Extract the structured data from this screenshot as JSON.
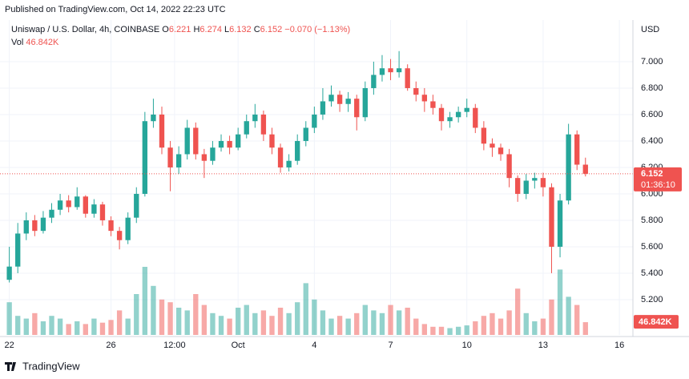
{
  "chart_data": {
    "type": "candlestick",
    "published": "Published on TradingView.com, Oct 14, 2022 22:23 UTC",
    "symbol": "Uniswap / U.S. Dollar, 4h, COINBASE",
    "ohlc_labels": {
      "open": "O",
      "high": "H",
      "low": "L",
      "close": "C"
    },
    "change": "−0.070 (−1.13%)",
    "volume_title": "Vol",
    "volume_label": "46.842K",
    "currency": "USD",
    "countdown": "01:36:10",
    "logo": "TradingView",
    "up_color": "#26a69a",
    "down_color": "#ef5350",
    "grid": true,
    "ylim": [
      4.933,
      7.315
    ],
    "yticks": [
      {
        "value": 5.2,
        "label": "5.200"
      },
      {
        "value": 5.4,
        "label": "5.400"
      },
      {
        "value": 5.6,
        "label": "5.600"
      },
      {
        "value": 5.8,
        "label": "5.800"
      },
      {
        "value": 6.0,
        "label": "6.000"
      },
      {
        "value": 6.2,
        "label": "6.200"
      },
      {
        "value": 6.4,
        "label": "6.400"
      },
      {
        "value": 6.6,
        "label": "6.600"
      },
      {
        "value": 6.8,
        "label": "6.800"
      },
      {
        "value": 7.0,
        "label": "7.000"
      }
    ],
    "xlim": [
      -1.1,
      73.6
    ],
    "xticks": [
      {
        "value": 0,
        "label": "22"
      },
      {
        "value": 12,
        "label": "26"
      },
      {
        "value": 19.5,
        "label": "12:00"
      },
      {
        "value": 27,
        "label": "Oct"
      },
      {
        "value": 36,
        "label": "4"
      },
      {
        "value": 45,
        "label": "7"
      },
      {
        "value": 54,
        "label": "10"
      },
      {
        "value": 63,
        "label": "13"
      },
      {
        "value": 72,
        "label": "16"
      }
    ],
    "vlim": [
      0,
      250000
    ],
    "open": [
      5.35,
      5.45,
      5.7,
      5.8,
      5.72,
      5.82,
      5.88,
      5.95,
      5.9,
      5.98,
      5.85,
      5.92,
      5.8,
      5.72,
      5.65,
      5.82,
      6.0,
      6.55,
      6.6,
      6.35,
      6.2,
      6.3,
      6.5,
      6.3,
      6.25,
      6.35,
      6.4,
      6.35,
      6.45,
      6.55,
      6.6,
      6.45,
      6.35,
      6.2,
      6.25,
      6.4,
      6.5,
      6.6,
      6.7,
      6.75,
      6.68,
      6.72,
      6.58,
      6.8,
      6.9,
      6.95,
      6.92,
      6.95,
      6.8,
      6.75,
      6.7,
      6.65,
      6.55,
      6.58,
      6.62,
      6.65,
      6.5,
      6.38,
      6.35,
      6.3,
      6.12,
      6.0,
      6.1,
      6.12,
      6.05,
      5.6,
      5.95,
      6.45,
      6.221
    ],
    "high": [
      5.6,
      5.78,
      5.86,
      5.84,
      5.87,
      5.93,
      6.0,
      5.99,
      6.05,
      5.99,
      5.96,
      5.94,
      5.83,
      5.75,
      5.86,
      6.05,
      6.62,
      6.72,
      6.66,
      6.4,
      6.36,
      6.56,
      6.54,
      6.34,
      6.4,
      6.45,
      6.44,
      6.5,
      6.6,
      6.68,
      6.63,
      6.5,
      6.38,
      6.3,
      6.45,
      6.55,
      6.66,
      6.8,
      6.82,
      6.78,
      6.77,
      6.75,
      6.85,
      7.0,
      7.05,
      7.02,
      7.08,
      6.98,
      6.85,
      6.8,
      6.75,
      6.68,
      6.62,
      6.66,
      6.72,
      6.68,
      6.55,
      6.42,
      6.38,
      6.34,
      6.14,
      6.15,
      6.16,
      6.16,
      6.08,
      6.0,
      6.53,
      6.48,
      6.274
    ],
    "low": [
      5.33,
      5.4,
      5.65,
      5.68,
      5.7,
      5.78,
      5.84,
      5.86,
      5.88,
      5.82,
      5.82,
      5.76,
      5.68,
      5.58,
      5.62,
      5.78,
      5.98,
      6.5,
      6.3,
      6.02,
      6.15,
      6.26,
      6.26,
      6.12,
      6.22,
      6.32,
      6.3,
      6.33,
      6.42,
      6.5,
      6.4,
      6.3,
      6.16,
      6.17,
      6.22,
      6.36,
      6.46,
      6.56,
      6.66,
      6.62,
      6.62,
      6.48,
      6.55,
      6.75,
      6.85,
      6.86,
      6.88,
      6.78,
      6.7,
      6.62,
      6.6,
      6.48,
      6.5,
      6.54,
      6.58,
      6.46,
      6.33,
      6.28,
      6.25,
      6.05,
      5.94,
      5.96,
      6.04,
      5.98,
      5.4,
      5.52,
      5.92,
      6.18,
      6.132
    ],
    "close": [
      5.45,
      5.7,
      5.8,
      5.72,
      5.82,
      5.88,
      5.95,
      5.9,
      5.98,
      5.85,
      5.92,
      5.8,
      5.72,
      5.65,
      5.82,
      6.0,
      6.55,
      6.6,
      6.35,
      6.2,
      6.3,
      6.5,
      6.3,
      6.25,
      6.35,
      6.4,
      6.35,
      6.45,
      6.55,
      6.6,
      6.45,
      6.35,
      6.2,
      6.25,
      6.4,
      6.5,
      6.6,
      6.7,
      6.75,
      6.68,
      6.72,
      6.58,
      6.8,
      6.9,
      6.95,
      6.92,
      6.95,
      6.8,
      6.75,
      6.7,
      6.65,
      6.55,
      6.58,
      6.62,
      6.65,
      6.5,
      6.38,
      6.35,
      6.3,
      6.12,
      6.0,
      6.1,
      6.12,
      6.05,
      5.6,
      5.95,
      6.45,
      6.221,
      6.152
    ],
    "volume": [
      120000,
      70000,
      60000,
      80000,
      50000,
      70000,
      60000,
      40000,
      50000,
      40000,
      60000,
      45000,
      55000,
      90000,
      60000,
      150000,
      250000,
      180000,
      130000,
      120000,
      100000,
      90000,
      150000,
      110000,
      80000,
      70000,
      60000,
      100000,
      110000,
      80000,
      90000,
      70000,
      100000,
      80000,
      120000,
      190000,
      130000,
      90000,
      60000,
      70000,
      60000,
      80000,
      110000,
      90000,
      80000,
      110000,
      90000,
      100000,
      60000,
      40000,
      30000,
      30000,
      25000,
      30000,
      35000,
      50000,
      70000,
      80000,
      60000,
      90000,
      170000,
      80000,
      50000,
      60000,
      130000,
      240000,
      140000,
      110000,
      46842
    ]
  }
}
